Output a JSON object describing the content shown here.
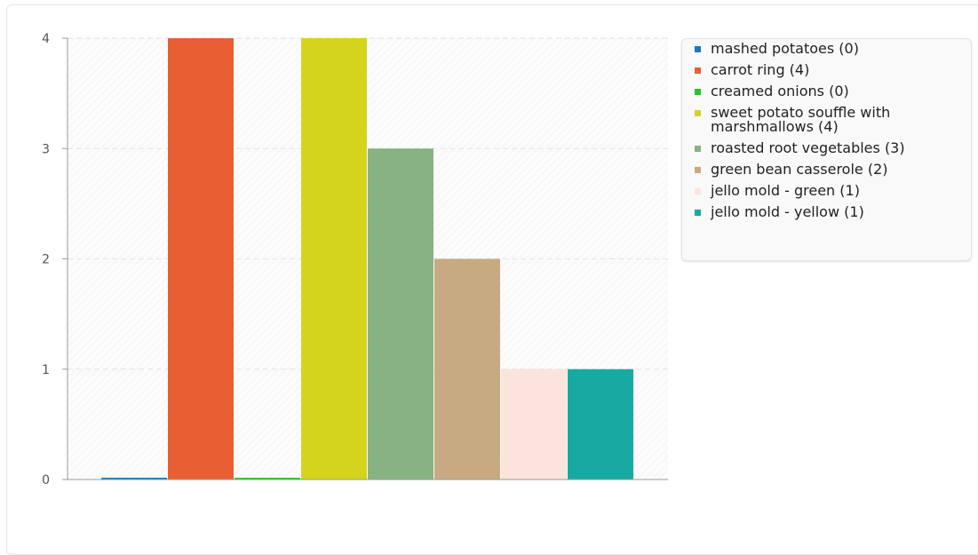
{
  "chart_data": {
    "type": "bar",
    "title": "",
    "xlabel": "",
    "ylabel": "",
    "ylim": [
      0,
      4
    ],
    "yticks": [
      0,
      1,
      2,
      3,
      4
    ],
    "grid": true,
    "legend_position": "right",
    "categories": [
      "mashed potatoes",
      "carrot ring",
      "creamed onions",
      "sweet potato souffle with marshmallows",
      "roasted root vegetables",
      "green bean casserole",
      "jello mold - green",
      "jello mold - yellow"
    ],
    "values": [
      0,
      4,
      0,
      4,
      3,
      2,
      1,
      1
    ],
    "colors": [
      "#1f77b4",
      "#e85f33",
      "#2ac42a",
      "#d4d41e",
      "#87b283",
      "#c8aa82",
      "#fae4dc",
      "#16aaa2"
    ],
    "legend_labels": [
      [
        "mashed potatoes (0)"
      ],
      [
        "carrot ring (4)"
      ],
      [
        "creamed onions (0)"
      ],
      [
        "sweet potato souffle with",
        "marshmallows (4)"
      ],
      [
        "roasted root vegetables (3)"
      ],
      [
        "green bean casserole (2)"
      ],
      [
        "jello mold - green (1)"
      ],
      [
        "jello mold - yellow (1)"
      ]
    ]
  }
}
